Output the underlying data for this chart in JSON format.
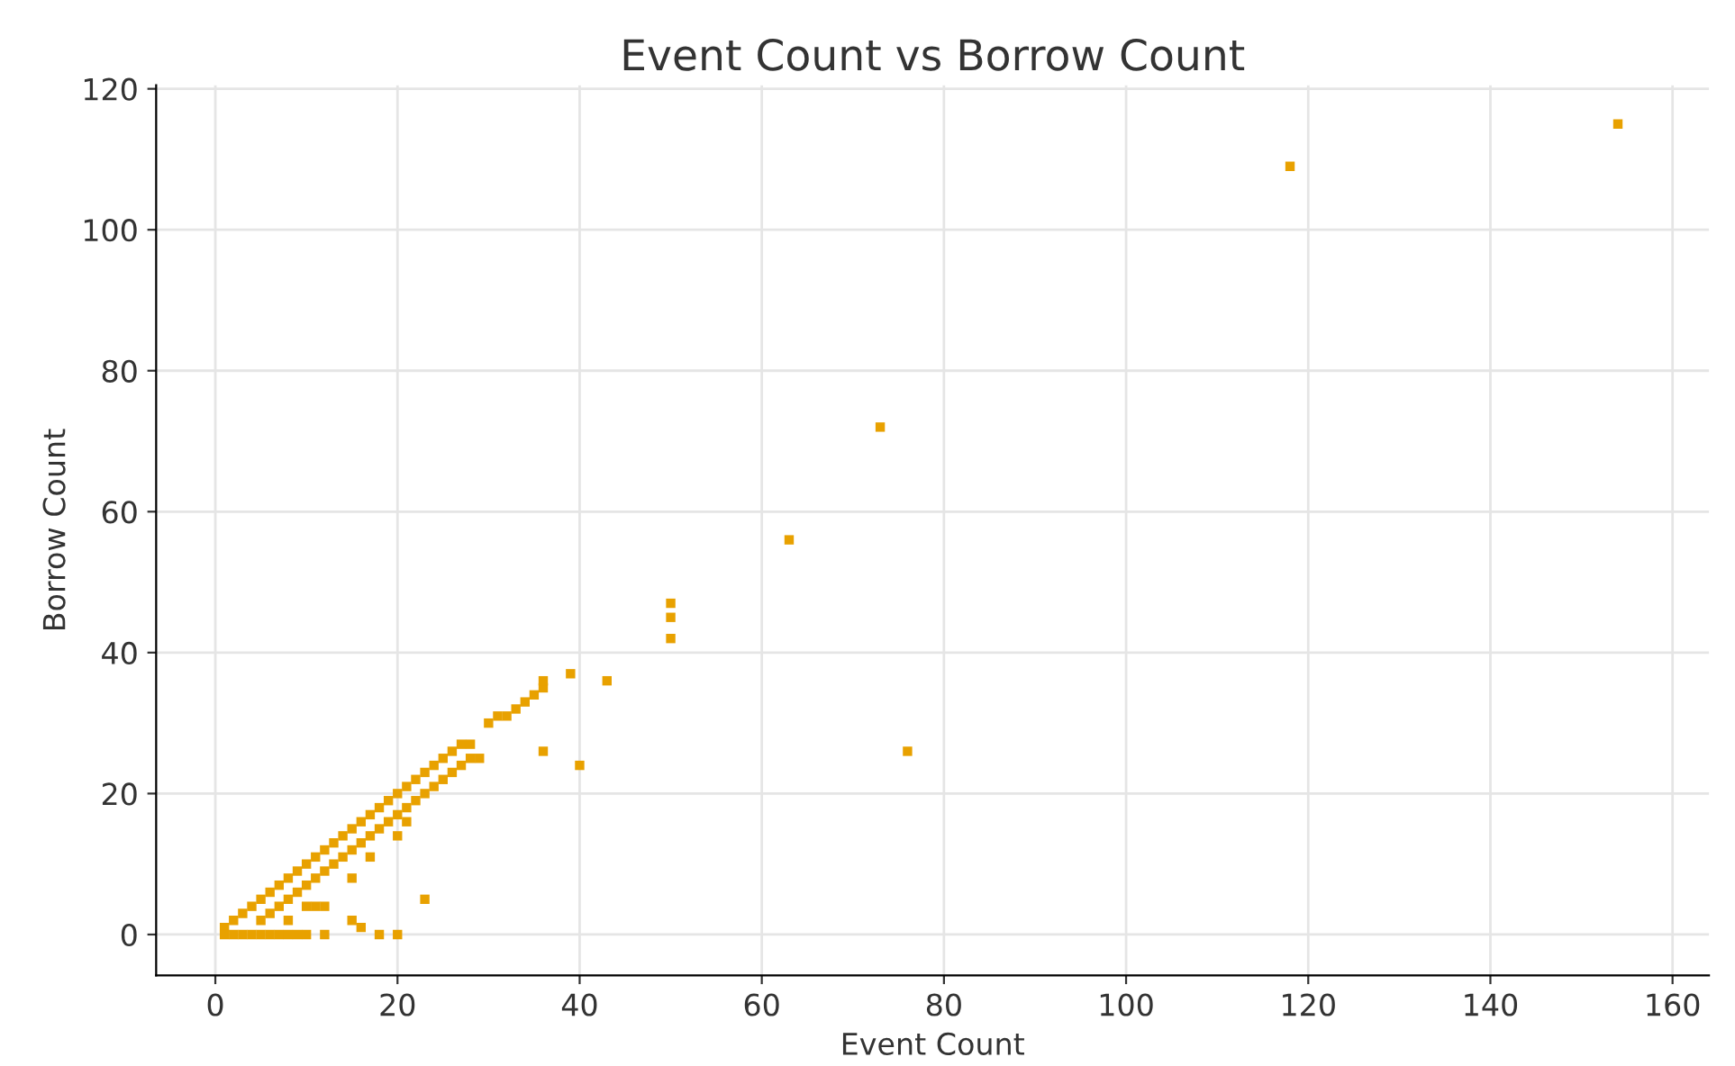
{
  "chart_data": {
    "type": "scatter",
    "title": "Event Count vs Borrow Count",
    "xlabel": "Event Count",
    "ylabel": "Borrow Count",
    "x": [
      1,
      2,
      3,
      4,
      5,
      6,
      7,
      8,
      9,
      10,
      11,
      12,
      13,
      14,
      15,
      16,
      17,
      18,
      19,
      20,
      21,
      22,
      23,
      24,
      25,
      26,
      27,
      28,
      29,
      30,
      31,
      32,
      33,
      34,
      35,
      36,
      36,
      39,
      43,
      36,
      40,
      50,
      50,
      50,
      63,
      73,
      76,
      118,
      154,
      1,
      2,
      3,
      4,
      5,
      6,
      7,
      8,
      9,
      5,
      6,
      7,
      8,
      9,
      10,
      11,
      12,
      13,
      14,
      15,
      16,
      17,
      18,
      19,
      20,
      21,
      22,
      23,
      24,
      25,
      26,
      27,
      28,
      8,
      10,
      11,
      12,
      12,
      15,
      16,
      18,
      20,
      23,
      20,
      21,
      15,
      17,
      10
    ],
    "series": [
      {
        "color": "#e8a100",
        "values": [
          1,
          2,
          3,
          4,
          5,
          6,
          7,
          8,
          9,
          10,
          11,
          12,
          13,
          14,
          15,
          16,
          17,
          18,
          19,
          20,
          21,
          22,
          23,
          24,
          25,
          26,
          27,
          27,
          25,
          30,
          31,
          31,
          32,
          33,
          34,
          35,
          36,
          37,
          36,
          26,
          24,
          47,
          45,
          42,
          56,
          72,
          26,
          109,
          115,
          0,
          0,
          0,
          0,
          0,
          0,
          0,
          0,
          0,
          2,
          3,
          4,
          5,
          6,
          7,
          8,
          9,
          10,
          11,
          12,
          13,
          14,
          15,
          16,
          17,
          18,
          19,
          20,
          21,
          22,
          23,
          24,
          25,
          2,
          4,
          4,
          4,
          0,
          2,
          1,
          0,
          0,
          5,
          14,
          16,
          8,
          11,
          0
        ]
      }
    ],
    "marker": "square",
    "grid": true,
    "xlim": [
      -6.5,
      164
    ],
    "xticks": [
      0,
      20,
      40,
      60,
      80,
      100,
      120,
      140,
      160
    ],
    "ylim": [
      -5.8,
      120.5
    ],
    "yticks": [
      0,
      20,
      40,
      60,
      80,
      100,
      120
    ]
  }
}
